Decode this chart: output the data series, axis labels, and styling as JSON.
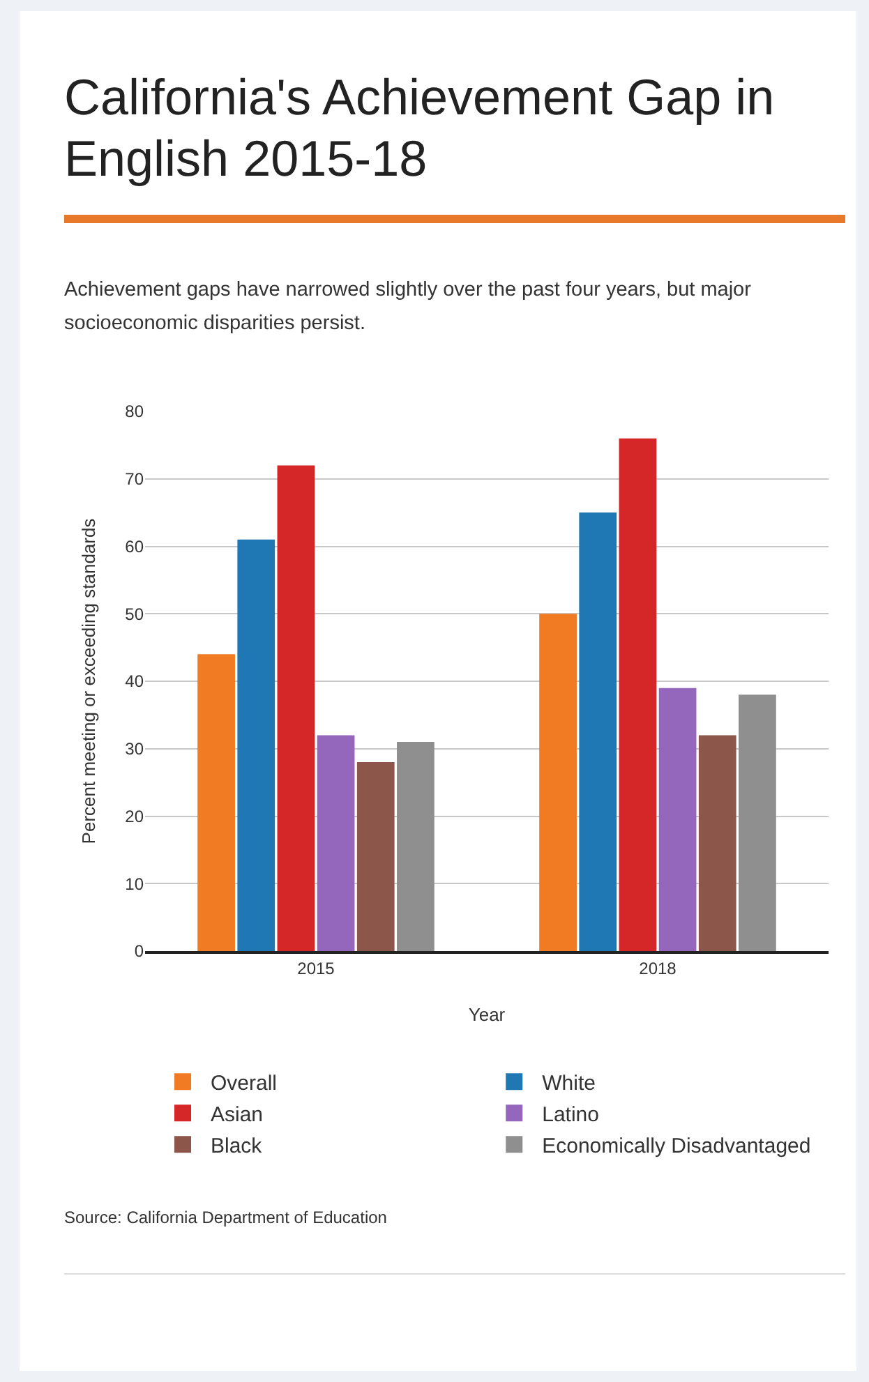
{
  "chart_data": {
    "type": "bar",
    "title": "California's Achievement Gap in English 2015-18",
    "subtitle": "Achievement gaps have narrowed slightly over the past four years, but major socioeconomic disparities persist.",
    "xlabel": "Year",
    "ylabel": "Percent meeting or exceeding standards",
    "categories": [
      "2015",
      "2018"
    ],
    "series": [
      {
        "name": "Overall",
        "color": "#f07b22",
        "values": [
          44,
          50
        ]
      },
      {
        "name": "White",
        "color": "#1f77b4",
        "values": [
          61,
          65
        ]
      },
      {
        "name": "Asian",
        "color": "#d62728",
        "values": [
          72,
          76
        ]
      },
      {
        "name": "Latino",
        "color": "#9467bd",
        "values": [
          32,
          39
        ]
      },
      {
        "name": "Black",
        "color": "#8c564b",
        "values": [
          28,
          32
        ]
      },
      {
        "name": "Economically Disadvantaged",
        "color": "#8f8f8f",
        "values": [
          31,
          38
        ]
      }
    ],
    "ylim": [
      0,
      80
    ],
    "yticks": [
      0,
      10,
      20,
      30,
      40,
      50,
      60,
      70,
      80
    ],
    "grid": "y",
    "legend": "bottom",
    "annotations": [
      "Source: California Department of Education"
    ]
  }
}
